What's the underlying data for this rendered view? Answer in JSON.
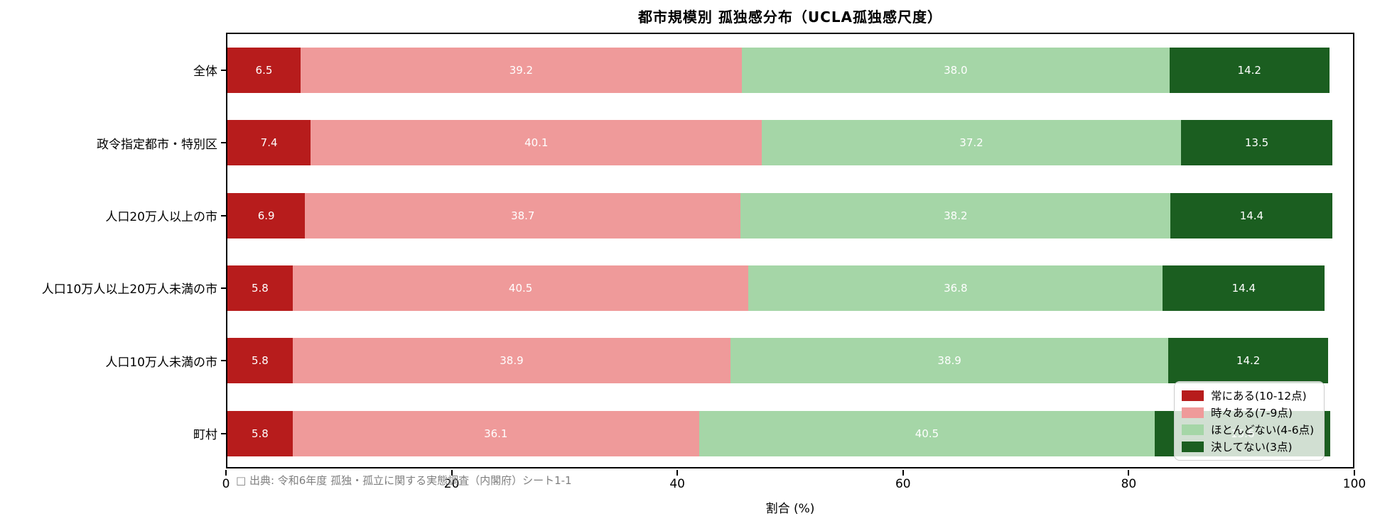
{
  "chart_data": {
    "type": "bar",
    "orientation": "horizontal-stacked",
    "title": "都市規模別 孤独感分布（UCLA孤独感尺度）",
    "xlabel": "割合 (%)",
    "xlim": [
      0,
      100
    ],
    "xticks": [
      0,
      20,
      40,
      60,
      80,
      100
    ],
    "grid": false,
    "legend_position": "lower-right",
    "categories": [
      "全体",
      "政令指定都市・特別区",
      "人口20万人以上の市",
      "人口10万人以上20万人未満の市",
      "人口10万人未満の市",
      "町村"
    ],
    "series": [
      {
        "name": "常にある(10-12点)",
        "color": "#b71c1c",
        "values": [
          6.5,
          7.4,
          6.9,
          5.8,
          5.8,
          5.8
        ]
      },
      {
        "name": "時々ある(7-9点)",
        "color": "#ef9a9a",
        "values": [
          39.2,
          40.1,
          38.7,
          40.5,
          38.9,
          36.1
        ]
      },
      {
        "name": "ほとんどない(4-6点)",
        "color": "#a5d6a7",
        "values": [
          38.0,
          37.2,
          38.2,
          36.8,
          38.9,
          40.5
        ]
      },
      {
        "name": "決してない(3点)",
        "color": "#1b5e20",
        "values": [
          14.2,
          13.5,
          14.4,
          14.4,
          14.2,
          15.6
        ]
      }
    ],
    "value_label_color": "#ffffff"
  },
  "footnote": "□ 出典: 令和6年度 孤独・孤立に関する実態調査（内閣府）シート1-1",
  "colors": {
    "axis": "#000000",
    "footnote_text": "#7f7f7f",
    "legend_border": "#cccccc",
    "legend_background": "rgba(255,255,255,0.8)"
  }
}
